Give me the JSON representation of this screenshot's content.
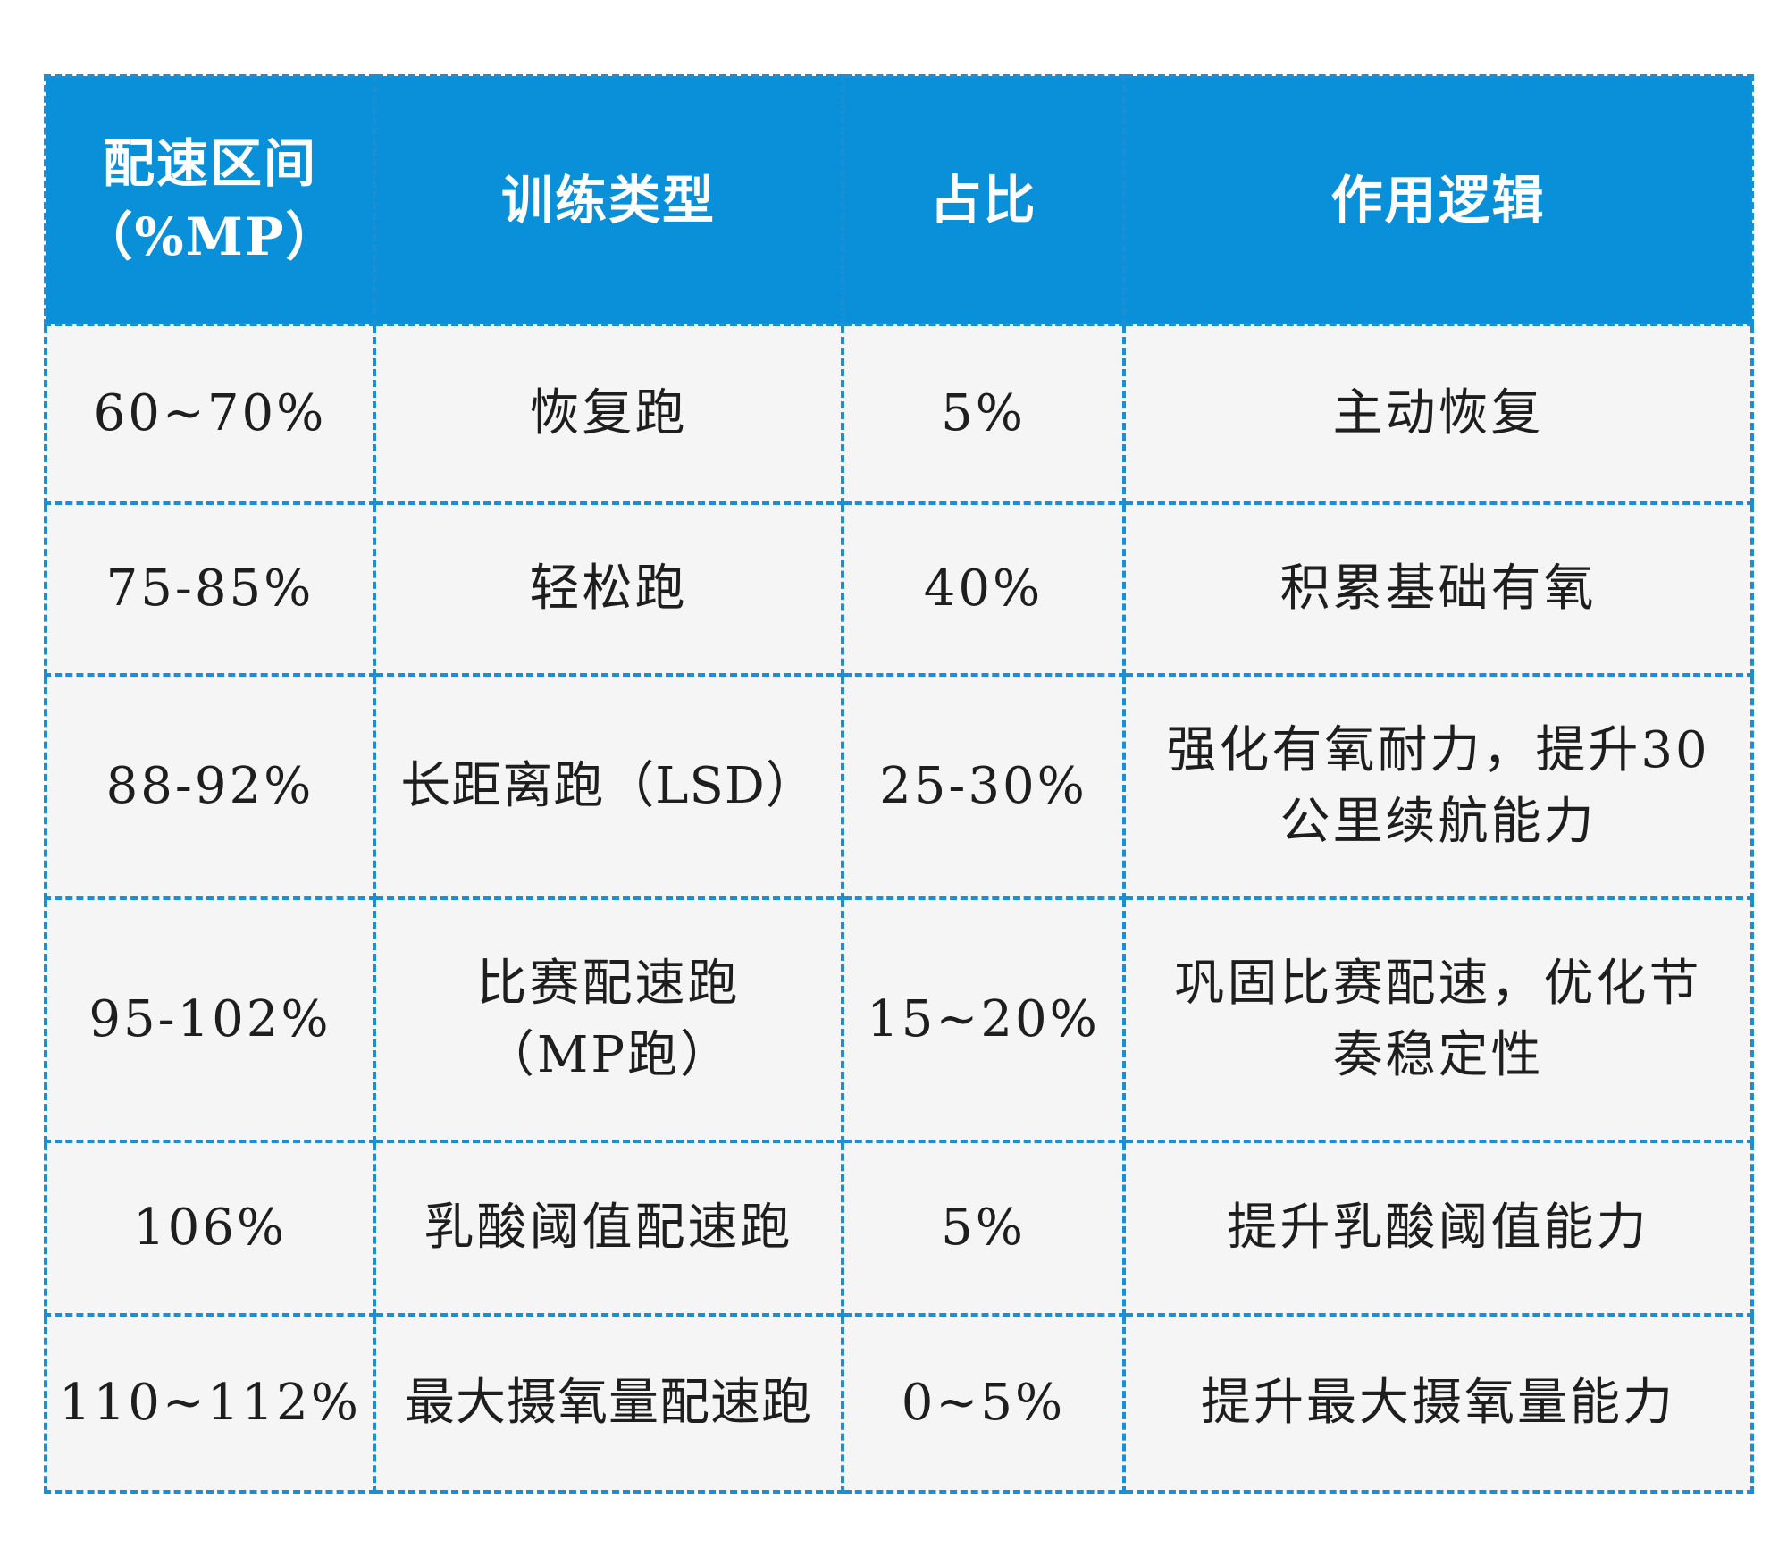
{
  "table": {
    "headers": [
      {
        "line1": "配速区间",
        "line2": "（%MP）"
      },
      {
        "line1": "训练类型",
        "line2": ""
      },
      {
        "line1": "占比",
        "line2": ""
      },
      {
        "line1": "作用逻辑",
        "line2": ""
      }
    ],
    "rows": [
      {
        "pace": "60~70%",
        "type": "恢复跑",
        "type2": "",
        "share": "5%",
        "logic": "主动恢复",
        "logic2": ""
      },
      {
        "pace": "75-85%",
        "type": "轻松跑",
        "type2": "",
        "share": "40%",
        "logic": "积累基础有氧",
        "logic2": ""
      },
      {
        "pace": "88-92%",
        "type": "长距离跑（LSD）",
        "type2": "",
        "share": "25-30%",
        "logic": "强化有氧耐力，提升30",
        "logic2": "公里续航能力"
      },
      {
        "pace": "95-102%",
        "type": "比赛配速跑",
        "type2": "（MP跑）",
        "share": "15~20%",
        "logic": "巩固比赛配速，优化节",
        "logic2": "奏稳定性"
      },
      {
        "pace": "106%",
        "type": "乳酸阈值配速跑",
        "type2": "",
        "share": "5%",
        "logic": "提升乳酸阈值能力",
        "logic2": ""
      },
      {
        "pace": "110~112%",
        "type": "最大摄氧量配速跑",
        "type2": "",
        "share": "0~5%",
        "logic": "提升最大摄氧量能力",
        "logic2": ""
      }
    ]
  }
}
